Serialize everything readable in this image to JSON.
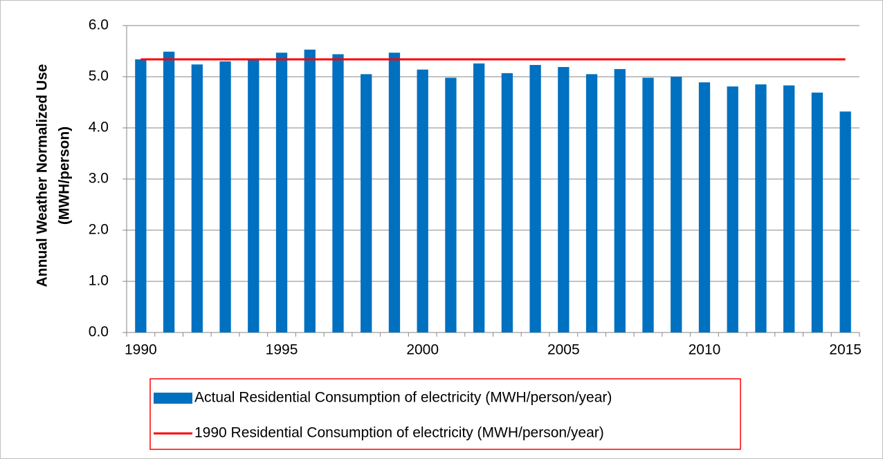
{
  "chart_data": {
    "type": "bar-line",
    "ylabel": [
      "Annual Weather Normalized Use",
      "(MWH/person)"
    ],
    "categories": [
      "1990",
      null,
      null,
      null,
      null,
      "1995",
      null,
      null,
      null,
      null,
      "2000",
      null,
      null,
      null,
      null,
      "2005",
      null,
      null,
      null,
      null,
      "2010",
      null,
      null,
      null,
      null,
      "2015"
    ],
    "series": [
      {
        "name": "Actual Residential Consumption of electricity (MWH/person/year)",
        "type": "bar",
        "color": "#0070c0",
        "values": [
          5.34,
          5.49,
          5.24,
          5.3,
          5.35,
          5.47,
          5.53,
          5.44,
          5.05,
          5.47,
          5.14,
          4.98,
          5.26,
          5.07,
          5.23,
          5.19,
          5.05,
          5.15,
          4.98,
          5.0,
          4.89,
          4.81,
          4.85,
          4.83,
          4.69,
          4.32
        ]
      },
      {
        "name": "1990 Residential Consumption of electricity (MWH/person/year)",
        "type": "line",
        "color": "#ff0000",
        "values": [
          5.34,
          5.34,
          5.34,
          5.34,
          5.34,
          5.34,
          5.34,
          5.34,
          5.34,
          5.34,
          5.34,
          5.34,
          5.34,
          5.34,
          5.34,
          5.34,
          5.34,
          5.34,
          5.34,
          5.34,
          5.34,
          5.34,
          5.34,
          5.34,
          5.34,
          5.34
        ]
      }
    ],
    "ylim": [
      0,
      6
    ],
    "yticks": [
      {
        "value": 0,
        "label": "0.0"
      },
      {
        "value": 1,
        "label": "1.0"
      },
      {
        "value": 2,
        "label": "2.0"
      },
      {
        "value": 3,
        "label": "3.0"
      },
      {
        "value": 4,
        "label": "4.0"
      },
      {
        "value": 5,
        "label": "5.0"
      },
      {
        "value": 6,
        "label": "6.0"
      }
    ],
    "grid": true,
    "legend": "bottom"
  }
}
